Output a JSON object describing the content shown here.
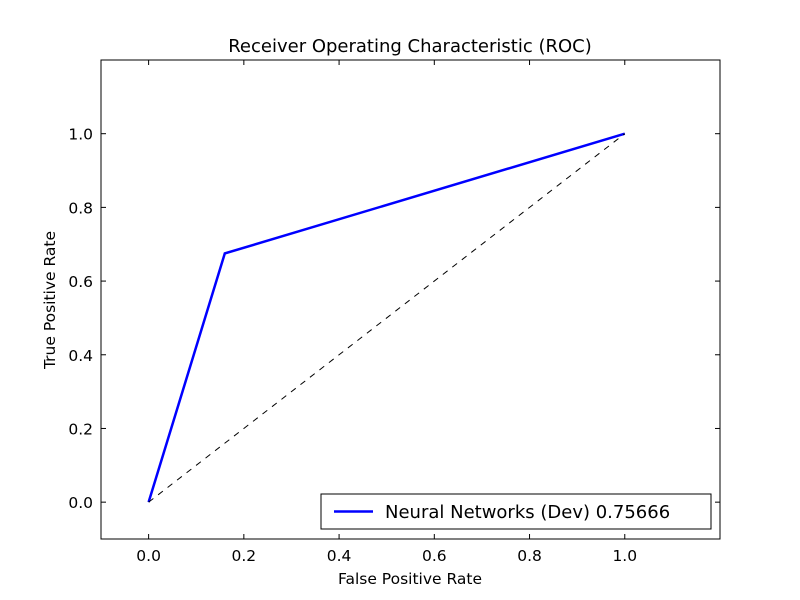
{
  "chart_data": {
    "type": "line",
    "title": "Receiver Operating Characteristic (ROC)",
    "xlabel": "False Positive Rate",
    "ylabel": "True Positive Rate",
    "xlim": [
      -0.1,
      1.2
    ],
    "ylim": [
      -0.1,
      1.2
    ],
    "x_ticks": [
      0.0,
      0.2,
      0.4,
      0.6,
      0.8,
      1.0
    ],
    "x_tick_labels": [
      "0.0",
      "0.2",
      "0.4",
      "0.6",
      "0.8",
      "1.0"
    ],
    "y_ticks": [
      0.0,
      0.2,
      0.4,
      0.6,
      0.8,
      1.0
    ],
    "y_tick_labels": [
      "0.0",
      "0.2",
      "0.4",
      "0.6",
      "0.8",
      "1.0"
    ],
    "grid": false,
    "legend_position": "lower-right",
    "series": [
      {
        "name": "Neural Networks (Dev) 0.75666",
        "color": "#0000ff",
        "style": "solid",
        "x": [
          0.0,
          0.16,
          1.0
        ],
        "y": [
          0.0,
          0.675,
          1.0
        ]
      },
      {
        "color": "#000000",
        "style": "dashed",
        "x": [
          0.0,
          1.0
        ],
        "y": [
          0.0,
          1.0
        ]
      }
    ]
  }
}
